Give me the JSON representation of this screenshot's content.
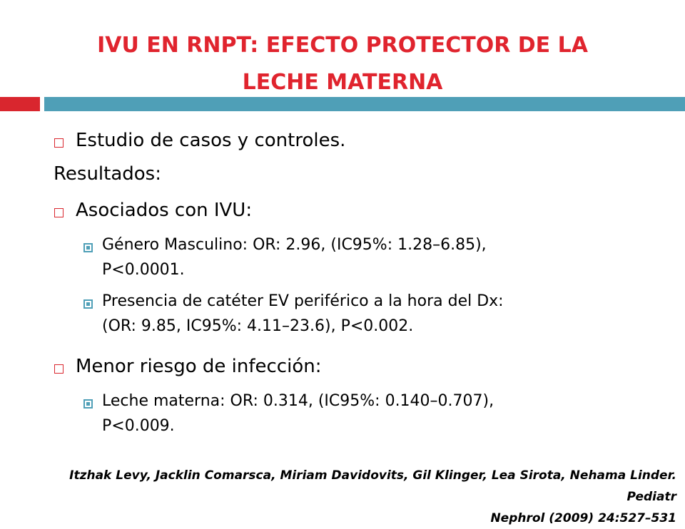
{
  "slide": {
    "title_line1": "IVU EN RNPT: EFECTO PROTECTOR DE LA",
    "title_line2": "LECHE MATERNA",
    "bullets": {
      "study": "Estudio de casos y controles.",
      "results": "Resultados:",
      "associated": "Asociados con IVU:",
      "sub1_line1": "Género Masculino: OR: 2.96, (IC95%: 1.28–6.85),",
      "sub1_line2": "P<0.0001.",
      "sub2_line1": "Presencia de catéter EV periférico a la hora del Dx:",
      "sub2_line2": "(OR: 9.85, IC95%: 4.11–23.6), P<0.002.",
      "lower_risk": "Menor riesgo de infección:",
      "sub3_line1": "Leche materna: OR: 0.314, (IC95%: 0.140–0.707),",
      "sub3_line2": "P<0.009."
    },
    "reference_line1": "Itzhak Levy, Jacklin Comarsca, Miriam Davidovits, Gil Klinger, Lea Sirota, Nehama Linder. Pediatr",
    "reference_line2": "Nephrol (2009) 24:527–531",
    "colors": {
      "title": "#e0242e",
      "accent_red": "#d9262e",
      "accent_blue": "#4f9fb7"
    }
  }
}
